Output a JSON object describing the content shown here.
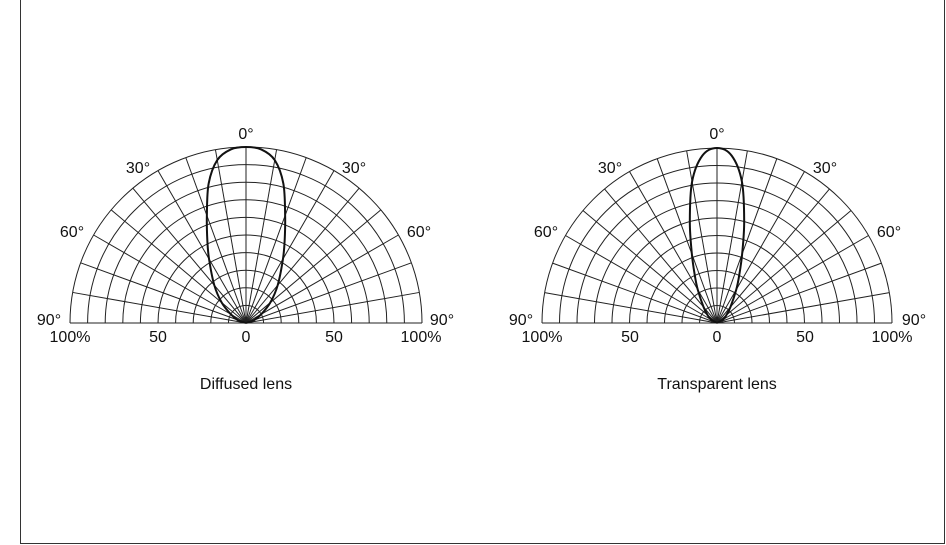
{
  "chart_data": [
    {
      "type": "polar",
      "title": "Diffused lens",
      "angle_labels": [
        "0°",
        "30°",
        "30°",
        "60°",
        "60°",
        "90°",
        "90°"
      ],
      "radial_labels": [
        "100%",
        "50",
        "0",
        "50",
        "100%"
      ],
      "angle_range_deg": [
        -90,
        90
      ],
      "radial_range_pct": [
        0,
        100
      ],
      "grid_angle_step_deg": 10,
      "grid_radial_step_pct": 10,
      "series": [
        {
          "angle_deg": [
            -90,
            -70,
            -60,
            -50,
            -40,
            -30,
            -25,
            -20,
            -15,
            -10,
            -5,
            0,
            5,
            10,
            15,
            20,
            25,
            30,
            40,
            50,
            60,
            70,
            90
          ],
          "relative_intensity_pct": [
            0,
            5,
            10,
            18,
            28,
            42,
            52,
            65,
            82,
            94,
            99,
            100,
            99,
            94,
            82,
            65,
            52,
            42,
            28,
            18,
            10,
            5,
            0
          ]
        }
      ]
    },
    {
      "type": "polar",
      "title": "Transparent lens",
      "angle_labels": [
        "0°",
        "30°",
        "30°",
        "60°",
        "60°",
        "90°",
        "90°"
      ],
      "radial_labels": [
        "100%",
        "50",
        "0",
        "50",
        "100%"
      ],
      "angle_range_deg": [
        -90,
        90
      ],
      "radial_range_pct": [
        0,
        100
      ],
      "grid_angle_step_deg": 10,
      "grid_radial_step_pct": 10,
      "series": [
        {
          "angle_deg": [
            -90,
            -60,
            -50,
            -40,
            -30,
            -25,
            -20,
            -15,
            -10,
            -5,
            0,
            5,
            10,
            15,
            20,
            25,
            30,
            40,
            50,
            60,
            90
          ],
          "relative_intensity_pct": [
            0,
            4,
            7,
            12,
            22,
            30,
            42,
            60,
            82,
            96,
            100,
            96,
            82,
            60,
            42,
            30,
            22,
            12,
            7,
            4,
            0
          ]
        }
      ]
    }
  ]
}
